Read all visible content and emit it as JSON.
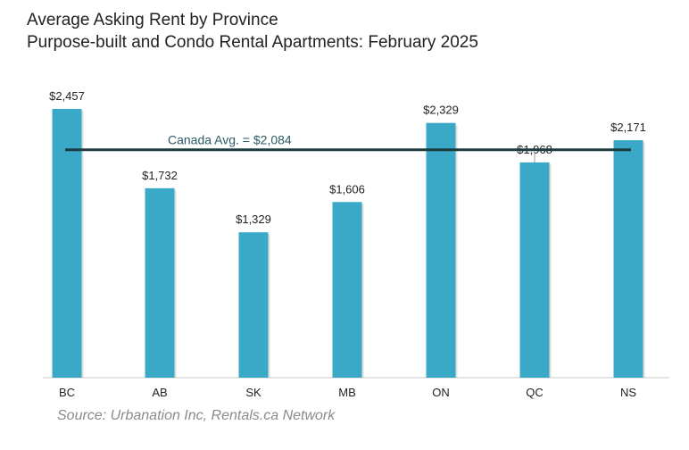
{
  "chart_data": {
    "type": "bar",
    "title": "Average Asking Rent by Province",
    "subtitle": "Purpose-built and Condo Rental Apartments: February 2025",
    "categories": [
      "BC",
      "AB",
      "SK",
      "MB",
      "ON",
      "QC",
      "NS"
    ],
    "values": [
      2457,
      1732,
      1329,
      1606,
      2329,
      1968,
      2171
    ],
    "value_labels": [
      "$2,457",
      "$1,732",
      "$1,329",
      "$1,606",
      "$2,329",
      "$1,968",
      "$2,171"
    ],
    "reference_line": {
      "label": "Canada Avg. = $2,084",
      "value": 2084
    },
    "ylim": [
      0,
      2457
    ],
    "xlabel": "",
    "ylabel": "",
    "grid": false,
    "source": "Source: Urbanation Inc, Rentals.ca Network",
    "colors": {
      "bar": "#3aa9c7",
      "avg_line": "#1b3b3f",
      "avg_label": "#2a5a63",
      "text": "#222222",
      "source": "#8a8a8a",
      "axis": "#c9c9c9"
    }
  }
}
